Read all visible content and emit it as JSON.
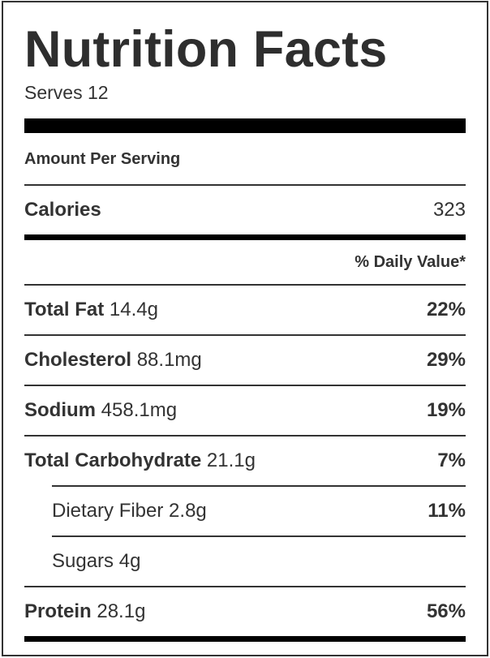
{
  "label": {
    "title": "Nutrition Facts",
    "serves": "Serves 12",
    "amount_per_serving": "Amount Per Serving",
    "calories": {
      "label": "Calories",
      "value": "323"
    },
    "daily_value_header": "% Daily Value*",
    "nutrients": [
      {
        "name": "Total Fat",
        "amount": "14.4g",
        "dv": "22%"
      },
      {
        "name": "Cholesterol",
        "amount": "88.1mg",
        "dv": "29%"
      },
      {
        "name": "Sodium",
        "amount": "458.1mg",
        "dv": "19%"
      },
      {
        "name": "Total Carbohydrate",
        "amount": "21.1g",
        "dv": "7%"
      },
      {
        "name": "Dietary Fiber",
        "amount": "2.8g",
        "dv": "11%"
      },
      {
        "name": "Sugars",
        "amount": "4g",
        "dv": ""
      },
      {
        "name": "Protein",
        "amount": "28.1g",
        "dv": "56%"
      }
    ]
  }
}
